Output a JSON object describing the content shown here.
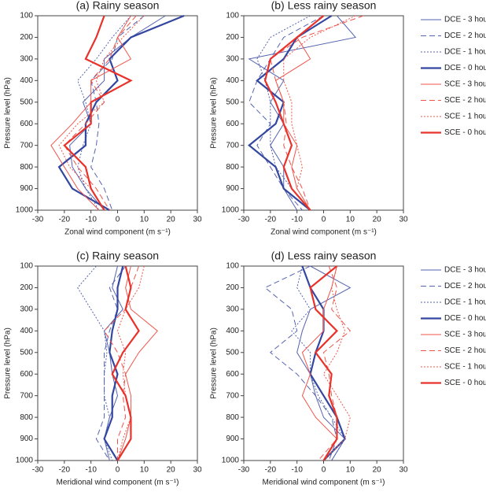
{
  "chart_data": [
    {
      "type": "line",
      "title": "(a) Rainy season",
      "xlabel": "Zonal wind component (m s⁻¹)",
      "ylabel": "Pressure level (hPa)",
      "y": [
        100,
        200,
        300,
        400,
        500,
        600,
        700,
        800,
        900,
        1000
      ],
      "xlim": [
        -30,
        30
      ],
      "ylim": [
        1000,
        100
      ],
      "xticks": [
        -30,
        -20,
        -10,
        0,
        10,
        20,
        30
      ],
      "yticks": [
        100,
        200,
        300,
        400,
        500,
        600,
        700,
        800,
        900,
        1000
      ],
      "series": [
        {
          "color": "#5563b0",
          "dash": "solid",
          "width": 1,
          "values": [
            18,
            5,
            -5,
            -5,
            -13,
            -10,
            -18,
            -17,
            -12,
            -5
          ]
        },
        {
          "color": "#5563b0",
          "dash": "dashed",
          "width": 1,
          "values": [
            10,
            0,
            -2,
            -10,
            -8,
            -7,
            -8,
            -10,
            -5,
            -2
          ]
        },
        {
          "color": "#5563b0",
          "dash": "dotted",
          "width": 1,
          "values": [
            5,
            -2,
            -8,
            -15,
            -12,
            -10,
            -13,
            -15,
            -12,
            -7
          ]
        },
        {
          "color": "#3447a0",
          "dash": "solid",
          "width": 2.2,
          "values": [
            25,
            5,
            -3,
            0,
            -8,
            -12,
            -12,
            -22,
            -17,
            -3
          ]
        },
        {
          "color": "#f0554a",
          "dash": "solid",
          "width": 1,
          "values": [
            5,
            0,
            5,
            -10,
            -10,
            -17,
            -25,
            -20,
            -15,
            -7
          ]
        },
        {
          "color": "#f0554a",
          "dash": "dashed",
          "width": 1,
          "values": [
            7,
            0,
            -3,
            -10,
            -5,
            -12,
            -20,
            -15,
            -8,
            -3
          ]
        },
        {
          "color": "#f0554a",
          "dash": "dotted",
          "width": 1,
          "values": [
            10,
            2,
            -5,
            -8,
            -5,
            -15,
            -22,
            -18,
            -10,
            -5
          ]
        },
        {
          "color": "#e8322a",
          "dash": "solid",
          "width": 2.2,
          "values": [
            -5,
            -8,
            -12,
            5,
            -10,
            -10,
            -20,
            -12,
            -10,
            -5
          ]
        }
      ]
    },
    {
      "type": "line",
      "title": "(b) Less rainy season",
      "xlabel": "Zonal wind component (m s⁻¹)",
      "ylabel": "Pressure level (hPa)",
      "y": [
        100,
        200,
        300,
        400,
        500,
        600,
        700,
        800,
        900,
        1000
      ],
      "xlim": [
        -30,
        30
      ],
      "ylim": [
        1000,
        100
      ],
      "xticks": [
        -30,
        -20,
        -10,
        0,
        10,
        20,
        30
      ],
      "yticks": [
        100,
        200,
        300,
        400,
        500,
        600,
        700,
        800,
        900,
        1000
      ],
      "series": [
        {
          "name": "DCE - 3 hours",
          "color": "#5563b0",
          "dash": "solid",
          "width": 1,
          "values": [
            5,
            12,
            -28,
            -15,
            -20,
            -15,
            -20,
            -15,
            -15,
            -10
          ]
        },
        {
          "name": "DCE - 2 hours",
          "color": "#5563b0",
          "dash": "dashed",
          "width": 1,
          "values": [
            0,
            -15,
            -20,
            -25,
            -28,
            -20,
            -25,
            -20,
            -15,
            -8
          ]
        },
        {
          "name": "DCE - 1 hours",
          "color": "#5563b0",
          "dash": "dotted",
          "width": 1,
          "values": [
            -5,
            -20,
            -25,
            -22,
            -20,
            -20,
            -20,
            -18,
            -12,
            -5
          ]
        },
        {
          "name": "DCE - 0 hours",
          "color": "#3447a0",
          "dash": "solid",
          "width": 2.2,
          "values": [
            3,
            -10,
            -15,
            -25,
            -15,
            -18,
            -28,
            -18,
            -15,
            -5
          ]
        },
        {
          "name": "SCE - 3 hours",
          "color": "#f0554a",
          "dash": "solid",
          "width": 1,
          "values": [
            0,
            -10,
            -5,
            -18,
            -15,
            -15,
            -10,
            -12,
            -10,
            -5
          ]
        },
        {
          "name": "SCE - 2 hours",
          "color": "#f0554a",
          "dash": "dashed",
          "width": 1,
          "values": [
            15,
            -8,
            -20,
            -18,
            -15,
            -14,
            -15,
            -12,
            -8,
            -5
          ]
        },
        {
          "name": "SCE - 1 hours",
          "color": "#f0554a",
          "dash": "dotted",
          "width": 1,
          "values": [
            12,
            -5,
            -15,
            -15,
            -12,
            -12,
            -10,
            -8,
            -10,
            -5
          ]
        },
        {
          "name": "SCE - 0 hours",
          "color": "#e8322a",
          "dash": "solid",
          "width": 2.2,
          "values": [
            0,
            -10,
            -20,
            -22,
            -18,
            -15,
            -12,
            -15,
            -12,
            -5
          ]
        }
      ]
    },
    {
      "type": "line",
      "title": "(c) Rainy season",
      "xlabel": "Meridional wind component (m s⁻¹)",
      "ylabel": "Pressure level (hPa)",
      "y": [
        100,
        200,
        300,
        400,
        500,
        600,
        700,
        800,
        900,
        1000
      ],
      "xlim": [
        -30,
        30
      ],
      "ylim": [
        1000,
        100
      ],
      "xticks": [
        -30,
        -20,
        -10,
        0,
        10,
        20,
        30
      ],
      "yticks": [
        100,
        200,
        300,
        400,
        500,
        600,
        700,
        800,
        900,
        1000
      ],
      "series": [
        {
          "color": "#5563b0",
          "dash": "solid",
          "width": 1,
          "values": [
            0,
            -2,
            2,
            -5,
            -3,
            -2,
            0,
            -3,
            -5,
            -3
          ]
        },
        {
          "color": "#5563b0",
          "dash": "dashed",
          "width": 1,
          "values": [
            3,
            -3,
            0,
            -3,
            -5,
            -5,
            -5,
            -5,
            -8,
            -3
          ]
        },
        {
          "color": "#5563b0",
          "dash": "dotted",
          "width": 1,
          "values": [
            -8,
            -15,
            -10,
            -5,
            -4,
            -5,
            -5,
            -3,
            -5,
            -2
          ]
        },
        {
          "color": "#3447a0",
          "dash": "solid",
          "width": 2.2,
          "values": [
            2,
            0,
            0,
            -2,
            -3,
            0,
            -2,
            -2,
            -5,
            0
          ]
        },
        {
          "color": "#f0554a",
          "dash": "solid",
          "width": 1,
          "values": [
            5,
            3,
            5,
            15,
            8,
            3,
            5,
            5,
            3,
            0
          ]
        },
        {
          "color": "#f0554a",
          "dash": "dashed",
          "width": 1,
          "values": [
            8,
            5,
            3,
            -5,
            0,
            3,
            2,
            3,
            0,
            0
          ]
        },
        {
          "color": "#f0554a",
          "dash": "dotted",
          "width": 1,
          "values": [
            10,
            8,
            3,
            0,
            3,
            2,
            3,
            5,
            2,
            0
          ]
        },
        {
          "color": "#e8322a",
          "dash": "solid",
          "width": 2.2,
          "values": [
            3,
            5,
            3,
            8,
            2,
            -2,
            3,
            5,
            5,
            0
          ]
        }
      ]
    },
    {
      "type": "line",
      "title": "(d) Less rainy season",
      "xlabel": "Meridional wind component (m s⁻¹)",
      "ylabel": "Pressure level (hPa)",
      "y": [
        100,
        200,
        300,
        400,
        500,
        600,
        700,
        800,
        900,
        1000
      ],
      "xlim": [
        -30,
        30
      ],
      "ylim": [
        1000,
        100
      ],
      "xticks": [
        -30,
        -20,
        -10,
        0,
        10,
        20,
        30
      ],
      "yticks": [
        100,
        200,
        300,
        400,
        500,
        600,
        700,
        800,
        900,
        1000
      ],
      "series": [
        {
          "name": "DCE - 3 hours",
          "color": "#5563b0",
          "dash": "solid",
          "width": 1,
          "values": [
            -5,
            10,
            -5,
            -8,
            -10,
            -5,
            -3,
            0,
            8,
            3
          ]
        },
        {
          "name": "DCE - 2 hours",
          "color": "#5563b0",
          "dash": "dashed",
          "width": 1,
          "values": [
            -5,
            -22,
            -12,
            -10,
            -20,
            -10,
            -3,
            3,
            5,
            2
          ]
        },
        {
          "name": "DCE - 1 hours",
          "color": "#5563b0",
          "dash": "dotted",
          "width": 1,
          "values": [
            -8,
            -10,
            -5,
            -12,
            -5,
            -5,
            -2,
            3,
            8,
            3
          ]
        },
        {
          "name": "DCE - 0 hours",
          "color": "#3447a0",
          "dash": "solid",
          "width": 2.2,
          "values": [
            -8,
            -5,
            0,
            0,
            -3,
            -5,
            0,
            5,
            8,
            0
          ]
        },
        {
          "name": "SCE - 3 hours",
          "color": "#f0554a",
          "dash": "solid",
          "width": 1,
          "values": [
            5,
            3,
            0,
            0,
            -8,
            -5,
            -8,
            -3,
            5,
            0
          ]
        },
        {
          "name": "SCE - 2 hours",
          "color": "#f0554a",
          "dash": "dashed",
          "width": 1,
          "values": [
            2,
            5,
            3,
            10,
            0,
            2,
            3,
            5,
            5,
            -2
          ]
        },
        {
          "name": "SCE - 1 hours",
          "color": "#f0554a",
          "dash": "dotted",
          "width": 1,
          "values": [
            5,
            3,
            5,
            8,
            5,
            0,
            5,
            10,
            8,
            0
          ]
        },
        {
          "name": "SCE - 0 hours",
          "color": "#e8322a",
          "dash": "solid",
          "width": 2.2,
          "values": [
            5,
            -5,
            -3,
            5,
            -3,
            3,
            2,
            5,
            5,
            0
          ]
        }
      ]
    }
  ]
}
